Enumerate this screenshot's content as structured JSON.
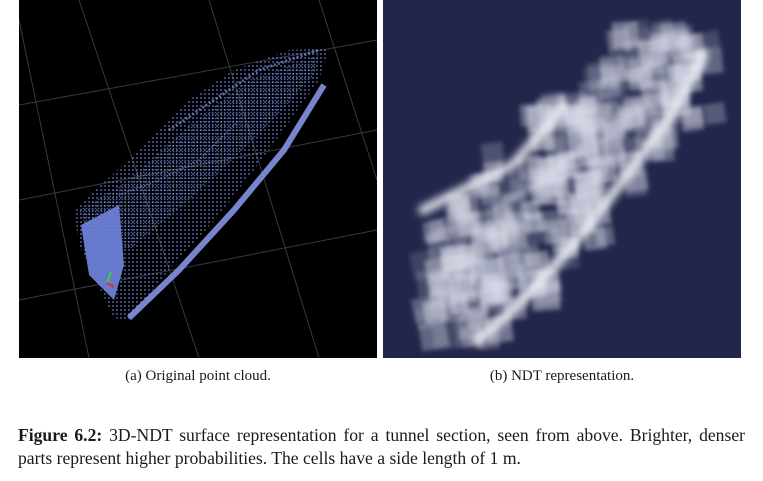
{
  "figure": {
    "panel_a": {
      "label": "(a) Original point cloud.",
      "background": "#000000",
      "point_color": "#6b7fd6",
      "grid_color": "#3a3a3a"
    },
    "panel_b": {
      "label": "(b) NDT representation.",
      "background": "#22264a",
      "cell_color": "#d8dbe8"
    },
    "caption": {
      "label": "Figure 6.2:",
      "text": "3D-NDT surface representation for a tunnel section, seen from above. Brighter, denser parts represent higher probabilities. The cells have a side length of 1 m."
    }
  }
}
